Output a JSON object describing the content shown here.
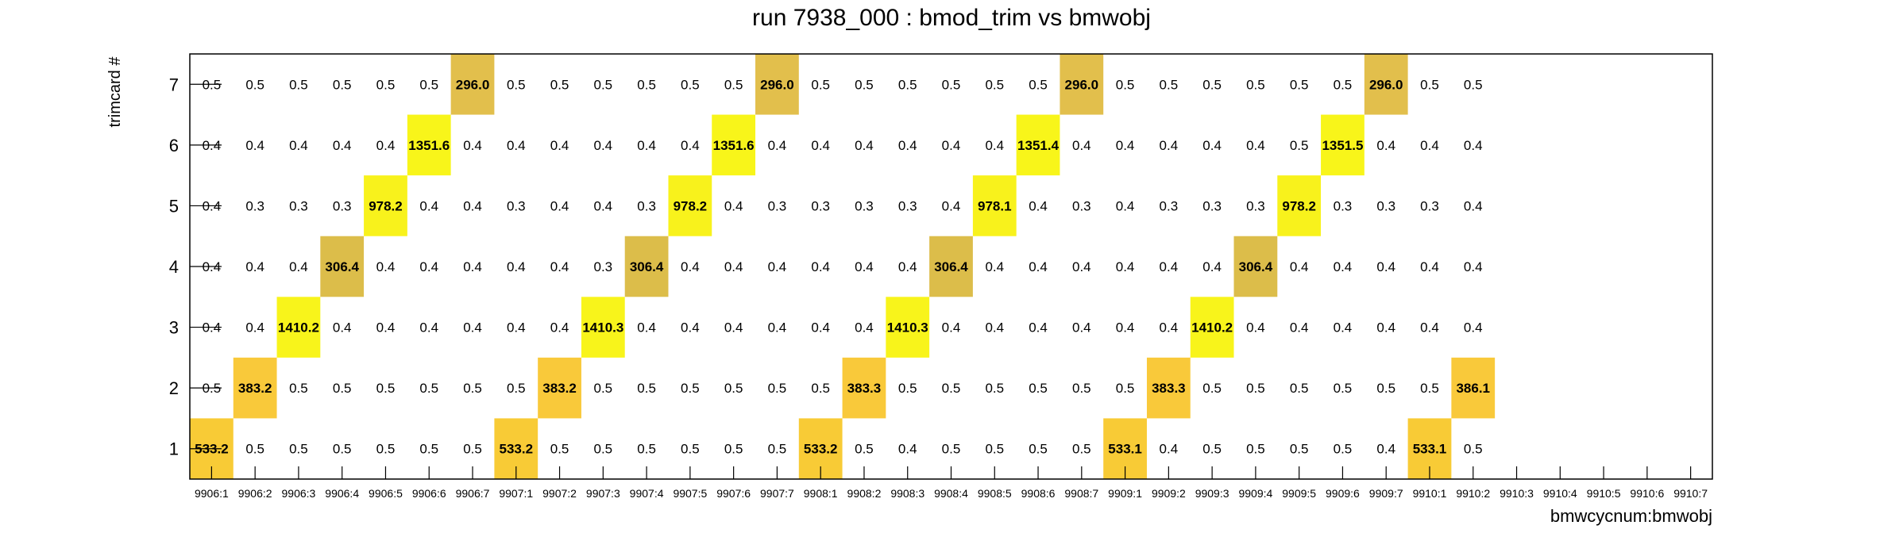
{
  "chart_data": {
    "type": "heatmap",
    "title": "run 7938_000 : bmod_trim vs bmwobj",
    "xlabel": "bmwcycnum:bmwobj",
    "ylabel": "trimcard #",
    "x_categories": [
      "9906:1",
      "9906:2",
      "9906:3",
      "9906:4",
      "9906:5",
      "9906:6",
      "9906:7",
      "9907:1",
      "9907:2",
      "9907:3",
      "9907:4",
      "9907:5",
      "9907:6",
      "9907:7",
      "9908:1",
      "9908:2",
      "9908:3",
      "9908:4",
      "9908:5",
      "9908:6",
      "9908:7",
      "9909:1",
      "9909:2",
      "9909:3",
      "9909:4",
      "9909:5",
      "9909:6",
      "9909:7",
      "9910:1",
      "9910:2",
      "9910:3",
      "9910:4",
      "9910:5",
      "9910:6",
      "9910:7"
    ],
    "y_categories": [
      "1",
      "2",
      "3",
      "4",
      "5",
      "6",
      "7"
    ],
    "values": [
      [
        533.2,
        0.5,
        0.5,
        0.5,
        0.5,
        0.5,
        0.5,
        533.2,
        0.5,
        0.5,
        0.5,
        0.5,
        0.5,
        0.5,
        533.2,
        0.5,
        0.4,
        0.5,
        0.5,
        0.5,
        0.5,
        533.1,
        0.4,
        0.5,
        0.5,
        0.5,
        0.5,
        0.4,
        533.1,
        0.5,
        null,
        null,
        null,
        null,
        null
      ],
      [
        0.5,
        383.2,
        0.5,
        0.5,
        0.5,
        0.5,
        0.5,
        0.5,
        383.2,
        0.5,
        0.5,
        0.5,
        0.5,
        0.5,
        0.5,
        383.3,
        0.5,
        0.5,
        0.5,
        0.5,
        0.5,
        0.5,
        383.3,
        0.5,
        0.5,
        0.5,
        0.5,
        0.5,
        0.5,
        386.1,
        null,
        null,
        null,
        null,
        null
      ],
      [
        0.4,
        0.4,
        1410.2,
        0.4,
        0.4,
        0.4,
        0.4,
        0.4,
        0.4,
        1410.3,
        0.4,
        0.4,
        0.4,
        0.4,
        0.4,
        0.4,
        1410.3,
        0.4,
        0.4,
        0.4,
        0.4,
        0.4,
        0.4,
        1410.2,
        0.4,
        0.4,
        0.4,
        0.4,
        0.4,
        0.4,
        null,
        null,
        null,
        null,
        null
      ],
      [
        0.4,
        0.4,
        0.4,
        306.4,
        0.4,
        0.4,
        0.4,
        0.4,
        0.4,
        0.3,
        306.4,
        0.4,
        0.4,
        0.4,
        0.4,
        0.4,
        0.4,
        306.4,
        0.4,
        0.4,
        0.4,
        0.4,
        0.4,
        0.4,
        306.4,
        0.4,
        0.4,
        0.4,
        0.4,
        0.4,
        null,
        null,
        null,
        null,
        null
      ],
      [
        0.4,
        0.3,
        0.3,
        0.3,
        978.2,
        0.4,
        0.4,
        0.3,
        0.4,
        0.4,
        0.3,
        978.2,
        0.4,
        0.3,
        0.3,
        0.3,
        0.3,
        0.4,
        978.1,
        0.4,
        0.3,
        0.4,
        0.3,
        0.3,
        0.3,
        978.2,
        0.3,
        0.3,
        0.3,
        0.4,
        null,
        null,
        null,
        null,
        null
      ],
      [
        0.4,
        0.4,
        0.4,
        0.4,
        0.4,
        1351.6,
        0.4,
        0.4,
        0.4,
        0.4,
        0.4,
        0.4,
        1351.6,
        0.4,
        0.4,
        0.4,
        0.4,
        0.4,
        0.4,
        1351.4,
        0.4,
        0.4,
        0.4,
        0.4,
        0.4,
        0.5,
        1351.5,
        0.4,
        0.4,
        0.4,
        null,
        null,
        null,
        null,
        null
      ],
      [
        0.5,
        0.5,
        0.5,
        0.5,
        0.5,
        0.5,
        296.0,
        0.5,
        0.5,
        0.5,
        0.5,
        0.5,
        0.5,
        296.0,
        0.5,
        0.5,
        0.5,
        0.5,
        0.5,
        0.5,
        296.0,
        0.5,
        0.5,
        0.5,
        0.5,
        0.5,
        0.5,
        296.0,
        0.5,
        0.5,
        null,
        null,
        null,
        null,
        null
      ]
    ],
    "highlight_colors": {
      "296.0": "#e2bf4c",
      "306.4": "#dcbd4a",
      "383": "#f9c93a",
      "533": "#f8cb36",
      "978": "#f8f21c",
      "1351": "#f8f51a",
      "1410": "#f8f41b"
    },
    "grid": false,
    "legend": "none"
  }
}
